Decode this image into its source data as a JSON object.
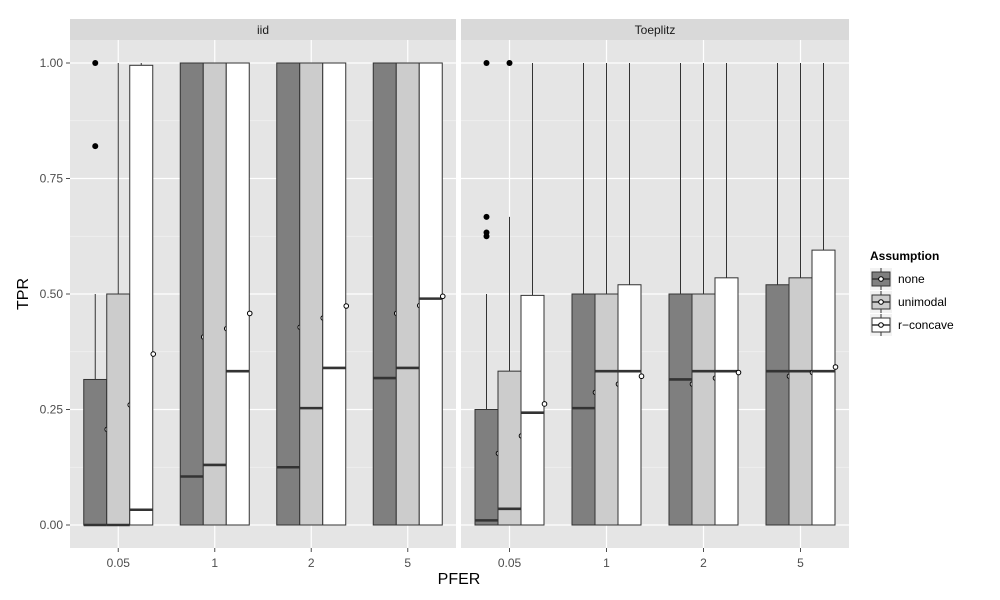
{
  "chart_data": {
    "type": "boxplot",
    "xlabel": "PFER",
    "ylabel": "TPR",
    "ylim": [
      0,
      1
    ],
    "yticks": [
      0,
      0.25,
      0.5,
      0.75,
      1
    ],
    "ytick_labels": [
      "0.00",
      "0.25",
      "0.50",
      "0.75",
      "1.00"
    ],
    "categories": [
      "0.05",
      "1",
      "2",
      "5"
    ],
    "grid": true,
    "legend": {
      "title": "Assumption",
      "placement": "right",
      "entries": [
        {
          "name": "none",
          "color": "#7f7f7f"
        },
        {
          "name": "unimodal",
          "color": "#cccccc"
        },
        {
          "name": "r−concave",
          "color": "#ffffff"
        }
      ]
    },
    "panels": [
      {
        "title": "iid",
        "groups": [
          {
            "category": "0.05",
            "boxes": [
              {
                "series": "none",
                "q1": 0,
                "median": 0,
                "q3": 0.315,
                "whisker_low": 0,
                "whisker_high": 0.5,
                "mean": 0.207,
                "outliers": [
                  0.82,
                  1.0
                ]
              },
              {
                "series": "unimodal",
                "q1": 0,
                "median": 0,
                "q3": 0.5,
                "whisker_low": 0,
                "whisker_high": 1.0,
                "mean": 0.26,
                "outliers": []
              },
              {
                "series": "r−concave",
                "q1": 0,
                "median": 0.033,
                "q3": 0.995,
                "whisker_low": 0,
                "whisker_high": 1.0,
                "mean": 0.37,
                "outliers": []
              }
            ]
          },
          {
            "category": "1",
            "boxes": [
              {
                "series": "none",
                "q1": 0,
                "median": 0.105,
                "q3": 1.0,
                "whisker_low": 0,
                "whisker_high": 1.0,
                "mean": 0.407,
                "outliers": []
              },
              {
                "series": "unimodal",
                "q1": 0,
                "median": 0.13,
                "q3": 1.0,
                "whisker_low": 0,
                "whisker_high": 1.0,
                "mean": 0.425,
                "outliers": []
              },
              {
                "series": "r−concave",
                "q1": 0,
                "median": 0.333,
                "q3": 1.0,
                "whisker_low": 0,
                "whisker_high": 1.0,
                "mean": 0.458,
                "outliers": []
              }
            ]
          },
          {
            "category": "2",
            "boxes": [
              {
                "series": "none",
                "q1": 0,
                "median": 0.125,
                "q3": 1.0,
                "whisker_low": 0,
                "whisker_high": 1.0,
                "mean": 0.428,
                "outliers": []
              },
              {
                "series": "unimodal",
                "q1": 0,
                "median": 0.253,
                "q3": 1.0,
                "whisker_low": 0,
                "whisker_high": 1.0,
                "mean": 0.448,
                "outliers": []
              },
              {
                "series": "r−concave",
                "q1": 0,
                "median": 0.34,
                "q3": 1.0,
                "whisker_low": 0,
                "whisker_high": 1.0,
                "mean": 0.474,
                "outliers": []
              }
            ]
          },
          {
            "category": "5",
            "boxes": [
              {
                "series": "none",
                "q1": 0,
                "median": 0.318,
                "q3": 1.0,
                "whisker_low": 0,
                "whisker_high": 1.0,
                "mean": 0.458,
                "outliers": []
              },
              {
                "series": "unimodal",
                "q1": 0,
                "median": 0.34,
                "q3": 1.0,
                "whisker_low": 0,
                "whisker_high": 1.0,
                "mean": 0.475,
                "outliers": []
              },
              {
                "series": "r−concave",
                "q1": 0,
                "median": 0.49,
                "q3": 1.0,
                "whisker_low": 0,
                "whisker_high": 1.0,
                "mean": 0.495,
                "outliers": []
              }
            ]
          }
        ]
      },
      {
        "title": "Toeplitz",
        "groups": [
          {
            "category": "0.05",
            "boxes": [
              {
                "series": "none",
                "q1": 0,
                "median": 0.01,
                "q3": 0.25,
                "whisker_low": 0,
                "whisker_high": 0.5,
                "mean": 0.155,
                "outliers": [
                  0.625,
                  0.633,
                  0.667,
                  1.0
                ]
              },
              {
                "series": "unimodal",
                "q1": 0,
                "median": 0.035,
                "q3": 0.333,
                "whisker_low": 0,
                "whisker_high": 0.667,
                "mean": 0.193,
                "outliers": [
                  1.0
                ]
              },
              {
                "series": "r−concave",
                "q1": 0,
                "median": 0.243,
                "q3": 0.497,
                "whisker_low": 0,
                "whisker_high": 1.0,
                "mean": 0.262,
                "outliers": []
              }
            ]
          },
          {
            "category": "1",
            "boxes": [
              {
                "series": "none",
                "q1": 0,
                "median": 0.253,
                "q3": 0.5,
                "whisker_low": 0,
                "whisker_high": 1.0,
                "mean": 0.287,
                "outliers": []
              },
              {
                "series": "unimodal",
                "q1": 0,
                "median": 0.333,
                "q3": 0.5,
                "whisker_low": 0,
                "whisker_high": 1.0,
                "mean": 0.305,
                "outliers": []
              },
              {
                "series": "r−concave",
                "q1": 0,
                "median": 0.333,
                "q3": 0.52,
                "whisker_low": 0,
                "whisker_high": 1.0,
                "mean": 0.322,
                "outliers": []
              }
            ]
          },
          {
            "category": "2",
            "boxes": [
              {
                "series": "none",
                "q1": 0,
                "median": 0.315,
                "q3": 0.5,
                "whisker_low": 0,
                "whisker_high": 1.0,
                "mean": 0.305,
                "outliers": []
              },
              {
                "series": "unimodal",
                "q1": 0,
                "median": 0.333,
                "q3": 0.5,
                "whisker_low": 0,
                "whisker_high": 1.0,
                "mean": 0.318,
                "outliers": []
              },
              {
                "series": "r−concave",
                "q1": 0,
                "median": 0.333,
                "q3": 0.535,
                "whisker_low": 0,
                "whisker_high": 1.0,
                "mean": 0.33,
                "outliers": []
              }
            ]
          },
          {
            "category": "5",
            "boxes": [
              {
                "series": "none",
                "q1": 0,
                "median": 0.333,
                "q3": 0.52,
                "whisker_low": 0,
                "whisker_high": 1.0,
                "mean": 0.322,
                "outliers": []
              },
              {
                "series": "unimodal",
                "q1": 0,
                "median": 0.333,
                "q3": 0.535,
                "whisker_low": 0,
                "whisker_high": 1.0,
                "mean": 0.33,
                "outliers": []
              },
              {
                "series": "r−concave",
                "q1": 0,
                "median": 0.333,
                "q3": 0.595,
                "whisker_low": 0,
                "whisker_high": 1.0,
                "mean": 0.342,
                "outliers": []
              }
            ]
          }
        ]
      }
    ]
  }
}
